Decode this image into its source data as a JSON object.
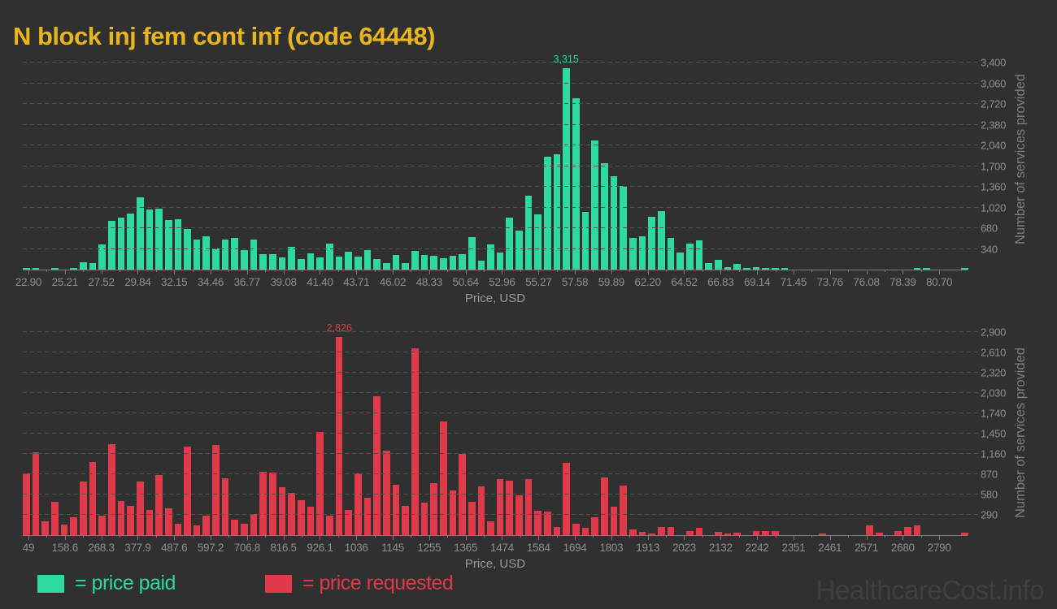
{
  "page": {
    "title": "N block inj fem cont inf (code 64448)",
    "title_color": "#e8b51e",
    "background": "#303030",
    "watermark": "HealthcareCost.info"
  },
  "legend": {
    "items": [
      {
        "label": "= price paid",
        "color": "#2cd99e"
      },
      {
        "label": "= price requested",
        "color": "#e0394a"
      }
    ]
  },
  "chart_data": [
    {
      "type": "bar",
      "name": "price-paid-histogram",
      "series": "price paid",
      "color": "#2cd99e",
      "xlabel": "Price, USD",
      "ylabel": "Number of services provided",
      "annotation": "3,315",
      "grid": "dashed-horizontal",
      "legend_position": "bottom-left",
      "ylim": [
        0,
        3630
      ],
      "gridline_step": 340,
      "yticks": [
        "340",
        "680",
        "1,020",
        "1,360",
        "1,700",
        "2,040",
        "2,380",
        "2,720",
        "3,060",
        "3,400"
      ],
      "categories": [
        "22.90",
        "25.21",
        "27.52",
        "29.84",
        "32.15",
        "34.46",
        "36.77",
        "39.08",
        "41.40",
        "43.71",
        "46.02",
        "48.33",
        "50.64",
        "52.96",
        "55.27",
        "57.58",
        "59.89",
        "62.20",
        "64.52",
        "66.83",
        "69.14",
        "71.45",
        "73.76",
        "76.08",
        "78.39",
        "80.70"
      ],
      "values": [
        30,
        15,
        0,
        12,
        0,
        28,
        122,
        113,
        417,
        802,
        852,
        920,
        1187,
        988,
        1006,
        816,
        825,
        671,
        498,
        544,
        353,
        489,
        521,
        326,
        498,
        250,
        257,
        203,
        370,
        171,
        271,
        203,
        429,
        217,
        293,
        217,
        325,
        180,
        113,
        235,
        113,
        307,
        239,
        226,
        190,
        226,
        248,
        533,
        144,
        415,
        280,
        852,
        643,
        1210,
        906,
        1858,
        1890,
        3315,
        2820,
        952,
        2121,
        1754,
        1541,
        1369,
        521,
        544,
        861,
        965,
        521,
        281,
        430,
        476,
        113,
        159,
        45,
        100,
        10,
        45,
        25,
        18,
        30,
        0,
        0,
        0,
        0,
        0,
        0,
        0,
        0,
        0,
        0,
        0,
        0,
        0,
        20,
        10,
        0,
        0,
        0,
        20
      ]
    },
    {
      "type": "bar",
      "name": "price-requested-histogram",
      "series": "price requested",
      "color": "#e0394a",
      "xlabel": "Price, USD",
      "ylabel": "Number of services provided",
      "annotation": "2,826",
      "grid": "dashed-horizontal",
      "legend_position": "bottom-left",
      "ylim": [
        0,
        2930
      ],
      "gridline_step": 290,
      "yticks": [
        "290",
        "580",
        "870",
        "1,160",
        "1,450",
        "1,740",
        "2,030",
        "2,320",
        "2,610",
        "2,900"
      ],
      "categories": [
        "49",
        "158.6",
        "268.3",
        "377.9",
        "487.6",
        "597.2",
        "706.8",
        "816.5",
        "926.1",
        "1036",
        "1145",
        "1255",
        "1365",
        "1474",
        "1584",
        "1694",
        "1803",
        "1913",
        "2023",
        "2132",
        "2242",
        "2351",
        "2461",
        "2571",
        "2680",
        "2790"
      ],
      "values": [
        882,
        1180,
        197,
        476,
        147,
        251,
        766,
        1044,
        282,
        1295,
        487,
        418,
        766,
        360,
        855,
        379,
        159,
        1257,
        135,
        275,
        1288,
        812,
        217,
        159,
        302,
        901,
        889,
        688,
        599,
        495,
        406,
        1473,
        282,
        2826,
        360,
        882,
        534,
        1976,
        1210,
        719,
        418,
        2660,
        468,
        746,
        1624,
        638,
        1160,
        476,
        696,
        193,
        797,
        773,
        565,
        804,
        352,
        333,
        120,
        1025,
        166,
        101,
        255,
        824,
        410,
        708,
        77,
        43,
        12,
        120,
        120,
        0,
        58,
        101,
        0,
        50,
        19,
        39,
        0,
        58,
        58,
        58,
        0,
        0,
        0,
        0,
        19,
        0,
        0,
        0,
        0,
        143,
        31,
        0,
        58,
        120,
        140,
        0,
        0,
        0,
        0,
        35
      ]
    }
  ]
}
